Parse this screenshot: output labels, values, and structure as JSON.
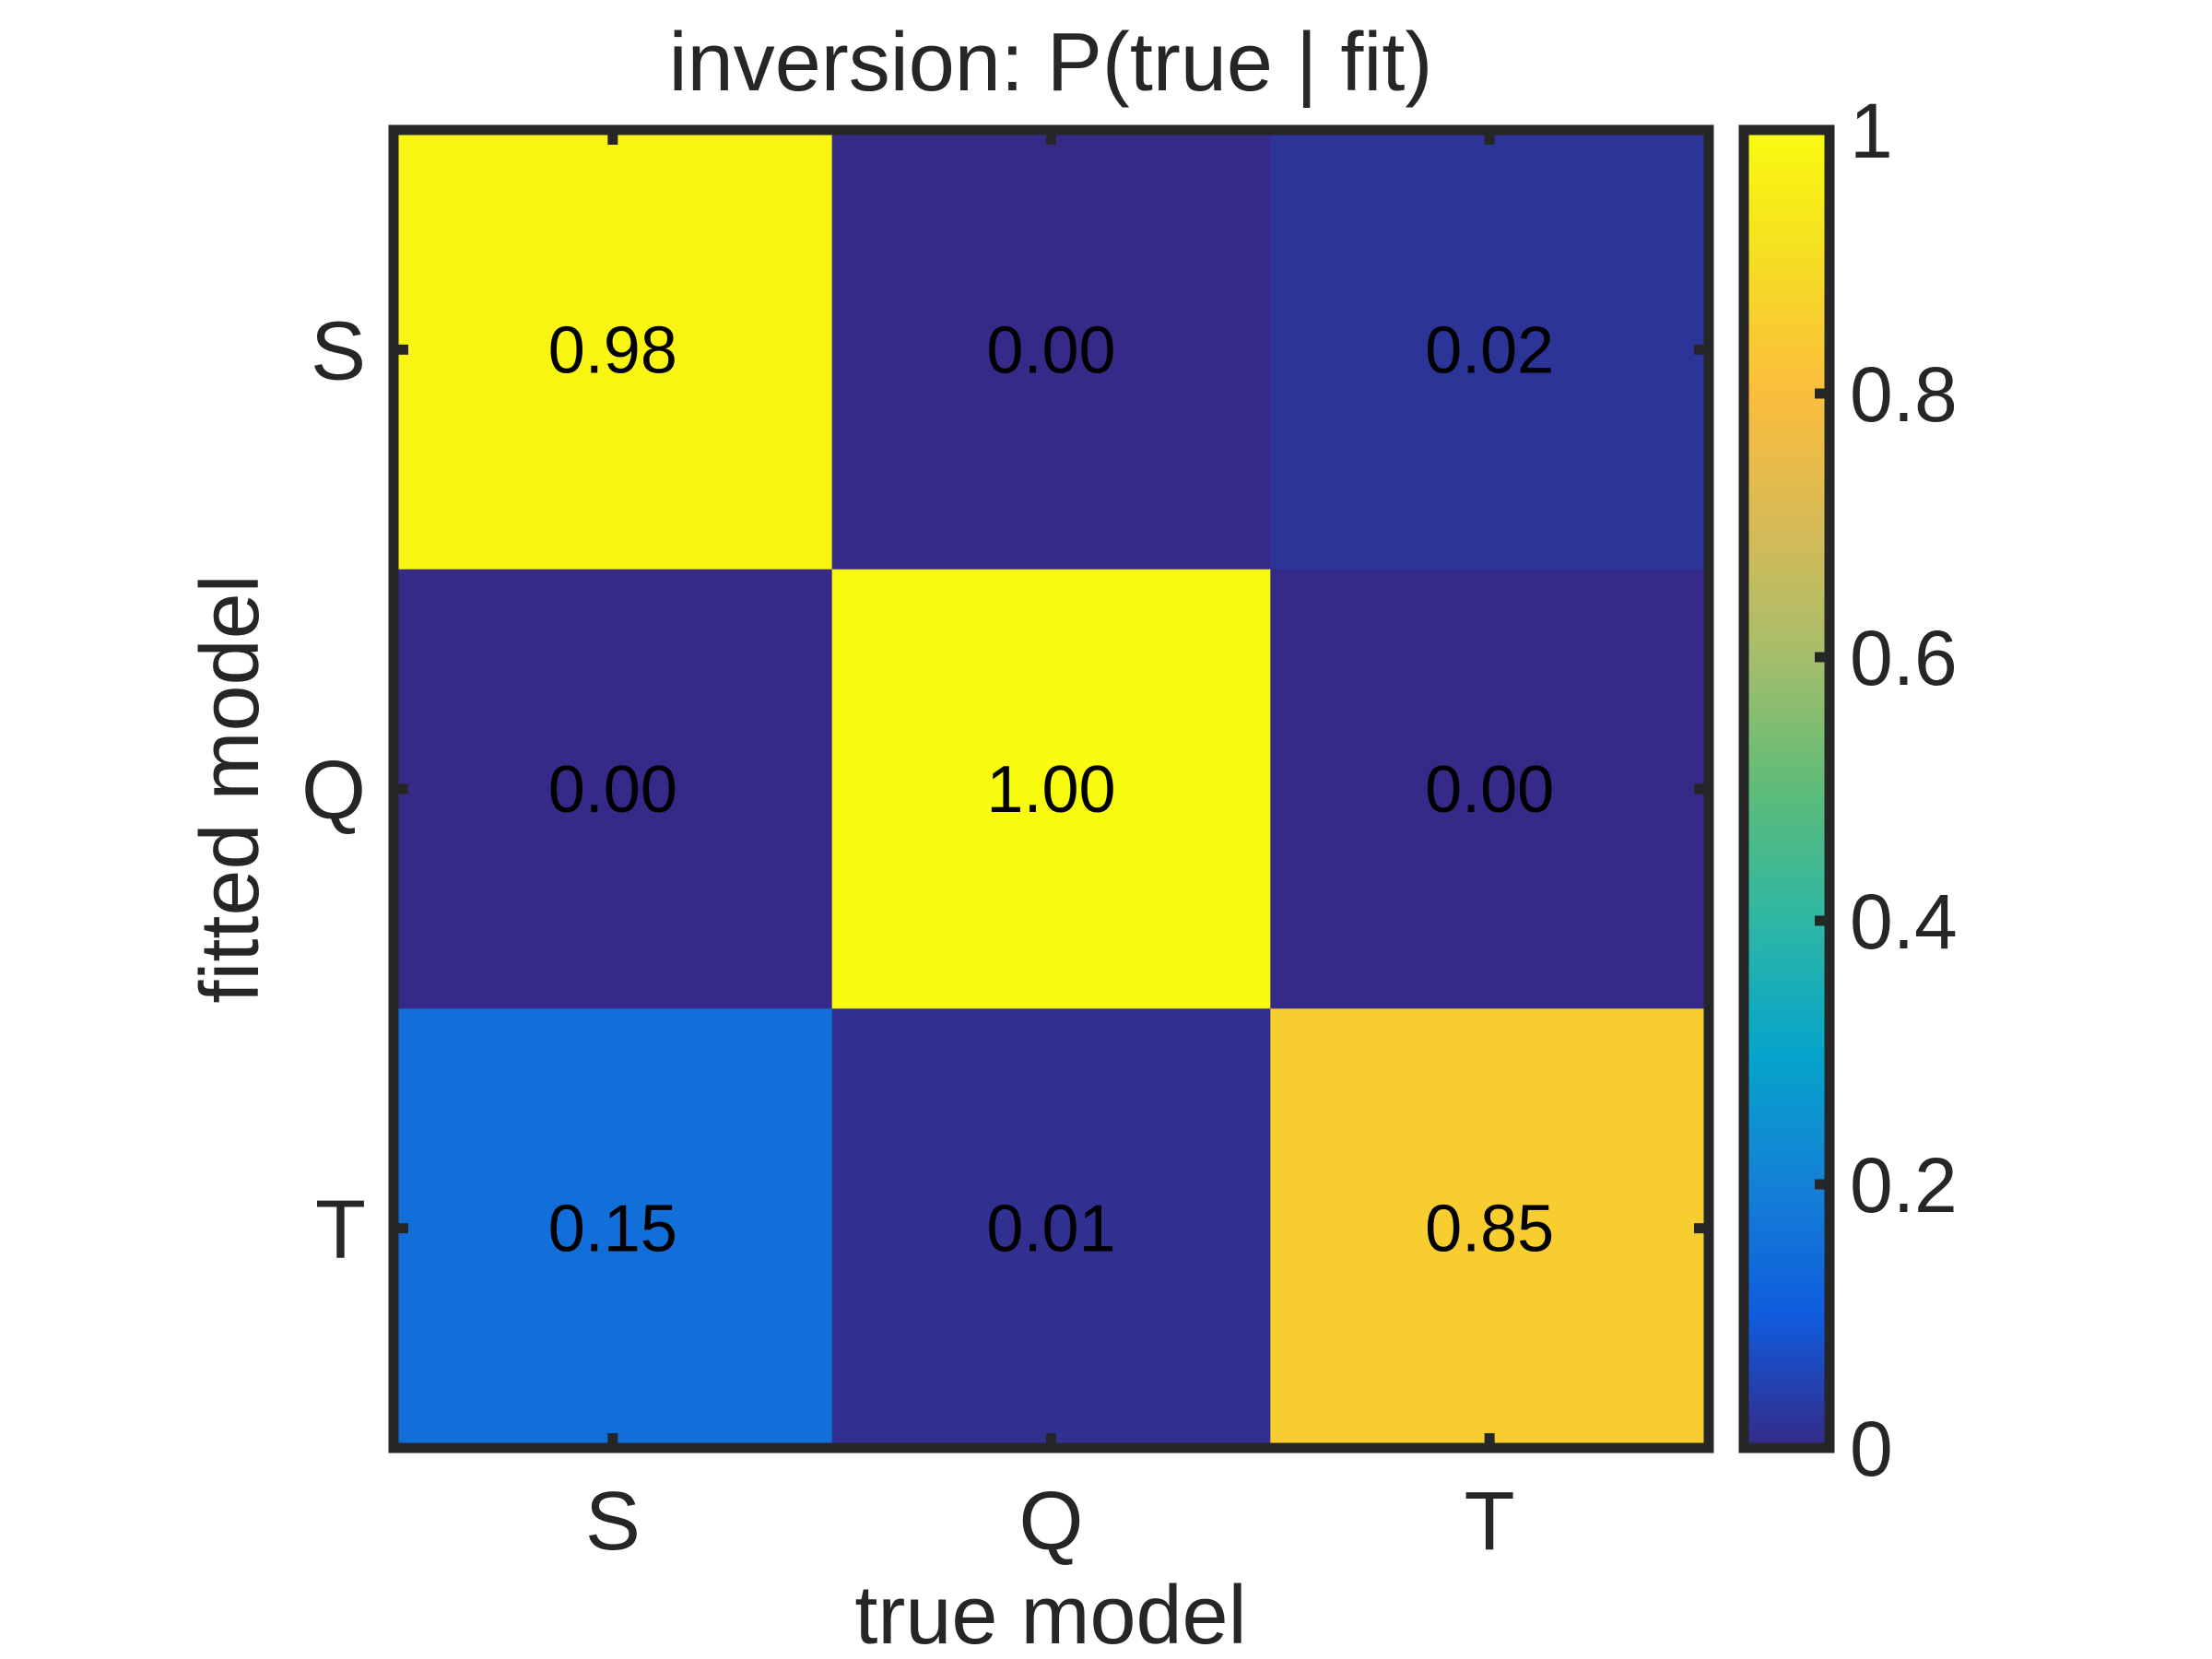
{
  "chart_data": {
    "type": "heatmap",
    "title": "inversion: P(true | fit)",
    "xlabel": "true model",
    "ylabel": "fitted model",
    "x_categories": [
      "S",
      "Q",
      "T"
    ],
    "y_categories": [
      "S",
      "Q",
      "T"
    ],
    "values": [
      [
        0.98,
        0.0,
        0.02
      ],
      [
        0.0,
        1.0,
        0.0
      ],
      [
        0.15,
        0.01,
        0.85
      ]
    ],
    "cell_labels": [
      [
        "0.98",
        "0.00",
        "0.02"
      ],
      [
        "0.00",
        "1.00",
        "0.00"
      ],
      [
        "0.15",
        "0.01",
        "0.85"
      ]
    ],
    "colorbar": {
      "range": [
        0,
        1
      ],
      "ticks": [
        0,
        0.2,
        0.4,
        0.6,
        0.8,
        1
      ],
      "tick_labels": [
        "0",
        "0.2",
        "0.4",
        "0.6",
        "0.8",
        "1"
      ],
      "colormap": "parula"
    }
  }
}
